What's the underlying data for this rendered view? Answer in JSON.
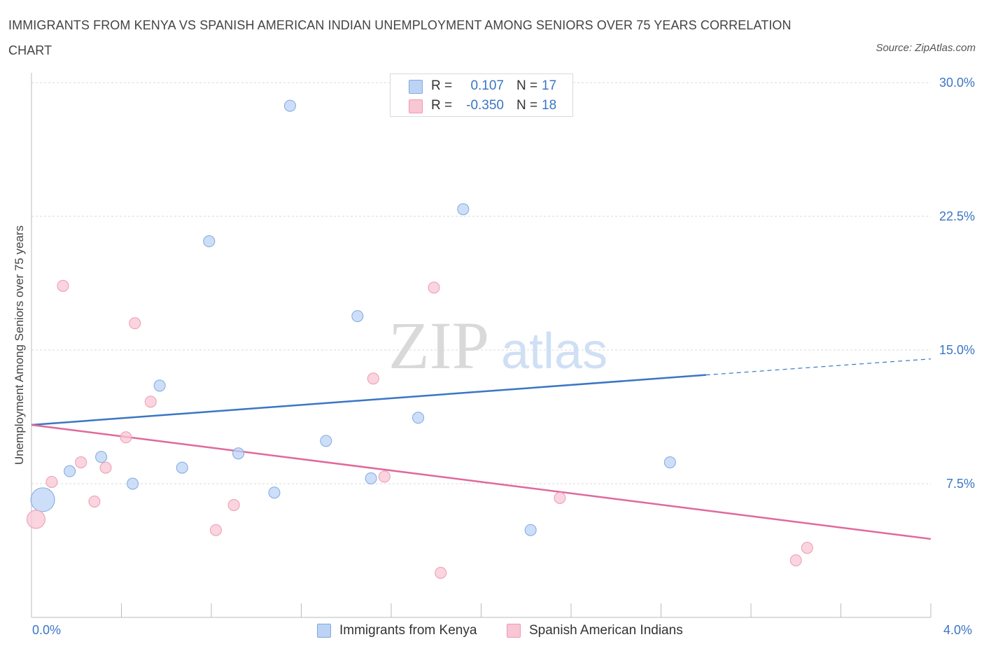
{
  "title": "IMMIGRANTS FROM KENYA VS SPANISH AMERICAN INDIAN UNEMPLOYMENT AMONG SENIORS OVER 75 YEARS CORRELATION CHART",
  "source": "Source: ZipAtlas.com",
  "watermark": {
    "zip": "ZIP",
    "atlas": "atlas"
  },
  "legend_top": {
    "rows": [
      {
        "r_label": "R =",
        "r_value": "0.107",
        "n_label": "N =",
        "n_value": "17"
      },
      {
        "r_label": "R =",
        "r_value": "-0.350",
        "n_label": "N =",
        "n_value": "18"
      }
    ]
  },
  "legend_bottom": [
    "Immigrants from Kenya",
    "Spanish American Indians"
  ],
  "colors": {
    "blue_fill": "#bcd3f5",
    "blue_stroke": "#7fa8e0",
    "blue_line": "#3a76c4",
    "pink_fill": "#f8c6d4",
    "pink_stroke": "#ee9ab3",
    "pink_line": "#e0699a",
    "tick_text": "#3a76c4",
    "grid": "#d8d8d8"
  },
  "chart_data": {
    "type": "scatter",
    "title": "IMMIGRANTS FROM KENYA VS SPANISH AMERICAN INDIAN UNEMPLOYMENT AMONG SENIORS OVER 75 YEARS CORRELATION CHART",
    "xlabel": "",
    "ylabel": "Unemployment Among Seniors over 75 years",
    "xlim": [
      0,
      4.0
    ],
    "ylim": [
      0,
      30
    ],
    "x_tick_labels": [
      "0.0%",
      "4.0%"
    ],
    "y_ticks": [
      7.5,
      15.0,
      22.5,
      30.0
    ],
    "y_tick_labels": [
      "7.5%",
      "15.0%",
      "22.5%",
      "30.0%"
    ],
    "grid": true,
    "legend_position": "top-center",
    "series": [
      {
        "name": "Immigrants from Kenya",
        "r": 0.107,
        "n": 17,
        "points": [
          {
            "x": 0.05,
            "y": 6.6,
            "big": true
          },
          {
            "x": 0.17,
            "y": 8.2
          },
          {
            "x": 0.31,
            "y": 9.0
          },
          {
            "x": 0.45,
            "y": 7.5
          },
          {
            "x": 0.57,
            "y": 13.0
          },
          {
            "x": 0.67,
            "y": 8.4
          },
          {
            "x": 0.79,
            "y": 21.1
          },
          {
            "x": 0.92,
            "y": 9.2
          },
          {
            "x": 1.08,
            "y": 7.0
          },
          {
            "x": 1.15,
            "y": 28.7
          },
          {
            "x": 1.31,
            "y": 9.9
          },
          {
            "x": 1.45,
            "y": 16.9
          },
          {
            "x": 1.51,
            "y": 7.8
          },
          {
            "x": 1.72,
            "y": 11.2
          },
          {
            "x": 1.92,
            "y": 22.9
          },
          {
            "x": 2.22,
            "y": 4.9
          },
          {
            "x": 2.84,
            "y": 8.7
          }
        ],
        "trend": {
          "x_start": 0.0,
          "y_start": 10.8,
          "x_solid_end": 3.0,
          "y_solid_end": 13.6,
          "x_end": 4.0,
          "y_end": 14.5
        }
      },
      {
        "name": "Spanish American Indians",
        "r": -0.35,
        "n": 18,
        "points": [
          {
            "x": 0.02,
            "y": 5.5
          },
          {
            "x": 0.09,
            "y": 7.6
          },
          {
            "x": 0.14,
            "y": 18.6
          },
          {
            "x": 0.22,
            "y": 8.7
          },
          {
            "x": 0.28,
            "y": 6.5
          },
          {
            "x": 0.33,
            "y": 8.4
          },
          {
            "x": 0.42,
            "y": 10.1
          },
          {
            "x": 0.46,
            "y": 16.5
          },
          {
            "x": 0.53,
            "y": 12.1
          },
          {
            "x": 0.82,
            "y": 4.9
          },
          {
            "x": 0.9,
            "y": 6.3
          },
          {
            "x": 1.52,
            "y": 13.4
          },
          {
            "x": 1.57,
            "y": 7.9
          },
          {
            "x": 1.79,
            "y": 18.5
          },
          {
            "x": 1.82,
            "y": 2.5
          },
          {
            "x": 2.35,
            "y": 6.7
          },
          {
            "x": 3.4,
            "y": 3.2
          },
          {
            "x": 3.45,
            "y": 3.9
          }
        ],
        "trend": {
          "x_start": 0.0,
          "y_start": 10.8,
          "x_end": 4.0,
          "y_end": 4.4
        }
      }
    ]
  }
}
